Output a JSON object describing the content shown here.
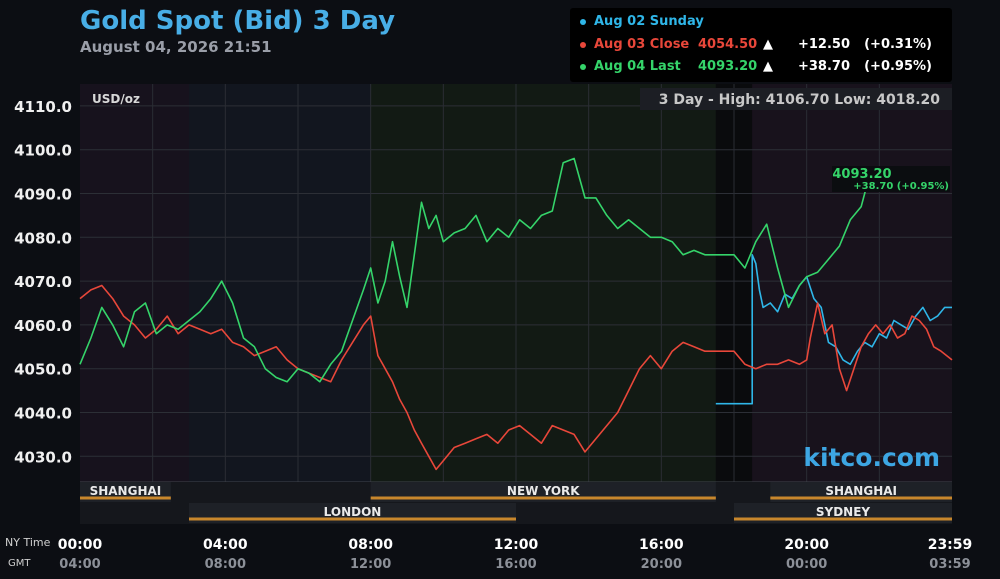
{
  "header": {
    "title": "Gold Spot (Bid) 3 Day",
    "subtitle": "August 04, 2026 21:51"
  },
  "legend": [
    {
      "label": "Aug 02 Sunday",
      "price": "",
      "arrow": "",
      "change": "",
      "pct": "",
      "color": "#2fb6e8"
    },
    {
      "label": "Aug 03 Close",
      "price": "4054.50",
      "arrow": "▲",
      "change": "+12.50",
      "pct": "(+0.31%)",
      "color": "#e8473a"
    },
    {
      "label": "Aug 04 Last",
      "price": "4093.20",
      "arrow": "▲",
      "change": "+38.70",
      "pct": "(+0.95%)",
      "color": "#35d46a"
    }
  ],
  "stats": {
    "text": "3 Day - High: 4106.70  Low: 4018.20"
  },
  "unit_label": "USD/oz",
  "watermark": "kitco.com",
  "last_label": {
    "price": "4093.20",
    "change": "+38.70 (+0.95%)"
  },
  "sessions": [
    {
      "name": "SHANGHAI",
      "start": 0,
      "end": 2.5,
      "row": 0
    },
    {
      "name": "NEW YORK",
      "start": 8,
      "end": 17.5,
      "row": 0
    },
    {
      "name": "SHANGHAI",
      "start": 19,
      "end": 24,
      "row": 0
    },
    {
      "name": "LONDON",
      "start": 3,
      "end": 12,
      "row": 1
    },
    {
      "name": "SYDNEY",
      "start": 18,
      "end": 24,
      "row": 1
    }
  ],
  "time_axis": {
    "ny_label": "NY Time",
    "gmt_label": "GMT",
    "ny_ticks": [
      "00:00",
      "04:00",
      "08:00",
      "12:00",
      "16:00",
      "20:00",
      "23:59"
    ],
    "gmt_ticks": [
      "04:00",
      "08:00",
      "12:00",
      "16:00",
      "20:00",
      "00:00",
      "03:59"
    ]
  },
  "chart_data": {
    "type": "line",
    "title": "Gold Spot (Bid) 3 Day",
    "ylabel": "USD/oz",
    "xlabel": "NY Time",
    "ylim": [
      4020,
      4115
    ],
    "xlim": [
      0,
      24
    ],
    "y_ticks": [
      "4110.0",
      "4100.0",
      "4090.0",
      "4080.0",
      "4070.0",
      "4060.0",
      "4050.0",
      "4040.0",
      "4030.0"
    ],
    "grid": true,
    "legend_position": "top-right",
    "series": [
      {
        "name": "Aug 02 Sunday",
        "color": "#2fb6e8",
        "x": [
          17.5,
          18.5,
          18.5,
          18.6,
          18.7,
          18.8,
          19.0,
          19.2,
          19.4,
          19.6,
          19.8,
          20.0,
          20.2,
          20.4,
          20.6,
          20.8,
          21.0,
          21.2,
          21.4,
          21.6,
          21.8,
          22.0,
          22.2,
          22.4,
          22.6,
          22.8,
          23.0,
          23.2,
          23.4,
          23.6,
          23.8,
          24.0
        ],
        "y": [
          4042,
          4042,
          4076,
          4074,
          4068,
          4064,
          4065,
          4063,
          4067,
          4066,
          4069,
          4071,
          4066,
          4064,
          4056,
          4055,
          4052,
          4051,
          4054,
          4056,
          4055,
          4058,
          4057,
          4061,
          4060,
          4059,
          4062,
          4064,
          4061,
          4062,
          4064,
          4064
        ]
      },
      {
        "name": "Aug 03 Close",
        "color": "#e8473a",
        "x": [
          0,
          0.3,
          0.6,
          0.9,
          1.2,
          1.5,
          1.8,
          2.1,
          2.4,
          2.7,
          3.0,
          3.3,
          3.6,
          3.9,
          4.2,
          4.5,
          4.8,
          5.1,
          5.4,
          5.7,
          6.0,
          6.3,
          6.6,
          6.9,
          7.2,
          7.5,
          7.8,
          8.0,
          8.2,
          8.4,
          8.6,
          8.8,
          9.0,
          9.2,
          9.4,
          9.6,
          9.8,
          10.0,
          10.3,
          10.6,
          10.9,
          11.2,
          11.5,
          11.8,
          12.1,
          12.4,
          12.7,
          13.0,
          13.3,
          13.6,
          13.9,
          14.2,
          14.5,
          14.8,
          15.1,
          15.4,
          15.7,
          16.0,
          16.3,
          16.6,
          16.9,
          17.2,
          17.5,
          18.0,
          18.3,
          18.6,
          18.9,
          19.2,
          19.5,
          19.8,
          20.0,
          20.1,
          20.3,
          20.5,
          20.7,
          20.9,
          21.1,
          21.3,
          21.5,
          21.7,
          21.9,
          22.1,
          22.3,
          22.5,
          22.7,
          22.9,
          23.1,
          23.3,
          23.5,
          23.7,
          24.0
        ],
        "y": [
          4066,
          4068,
          4069,
          4066,
          4062,
          4060,
          4057,
          4059,
          4062,
          4058,
          4060,
          4059,
          4058,
          4059,
          4056,
          4055,
          4053,
          4054,
          4055,
          4052,
          4050,
          4049,
          4048,
          4047,
          4052,
          4056,
          4060,
          4062,
          4053,
          4050,
          4047,
          4043,
          4040,
          4036,
          4033,
          4030,
          4027,
          4029,
          4032,
          4033,
          4034,
          4035,
          4033,
          4036,
          4037,
          4035,
          4033,
          4037,
          4036,
          4035,
          4031,
          4034,
          4037,
          4040,
          4045,
          4050,
          4053,
          4050,
          4054,
          4056,
          4055,
          4054,
          4054,
          4054,
          4051,
          4050,
          4051,
          4051,
          4052,
          4051,
          4052,
          4057,
          4065,
          4058,
          4060,
          4050,
          4045,
          4050,
          4055,
          4058,
          4060,
          4058,
          4060,
          4057,
          4058,
          4062,
          4061,
          4059,
          4055,
          4054,
          4052
        ]
      },
      {
        "name": "Aug 04 Last",
        "color": "#35d46a",
        "x": [
          0,
          0.3,
          0.6,
          0.9,
          1.2,
          1.5,
          1.8,
          2.1,
          2.4,
          2.7,
          3.0,
          3.3,
          3.6,
          3.9,
          4.2,
          4.5,
          4.8,
          5.1,
          5.4,
          5.7,
          6.0,
          6.3,
          6.6,
          6.9,
          7.2,
          7.5,
          7.8,
          8.0,
          8.2,
          8.4,
          8.6,
          8.8,
          9.0,
          9.2,
          9.4,
          9.6,
          9.8,
          10.0,
          10.3,
          10.6,
          10.9,
          11.2,
          11.5,
          11.8,
          12.1,
          12.4,
          12.7,
          13.0,
          13.3,
          13.6,
          13.9,
          14.2,
          14.5,
          14.8,
          15.1,
          15.4,
          15.7,
          16.0,
          16.3,
          16.6,
          16.9,
          17.2,
          17.5,
          18.0,
          18.3,
          18.6,
          18.9,
          19.2,
          19.5,
          19.8,
          20.0,
          20.3,
          20.6,
          20.9,
          21.2,
          21.5,
          21.7
        ],
        "y": [
          4051,
          4057,
          4064,
          4060,
          4055,
          4063,
          4065,
          4058,
          4060,
          4059,
          4061,
          4063,
          4066,
          4070,
          4065,
          4057,
          4055,
          4050,
          4048,
          4047,
          4050,
          4049,
          4047,
          4051,
          4054,
          4061,
          4068,
          4073,
          4065,
          4070,
          4079,
          4071,
          4064,
          4076,
          4088,
          4082,
          4085,
          4079,
          4081,
          4082,
          4085,
          4079,
          4082,
          4080,
          4084,
          4082,
          4085,
          4086,
          4097,
          4098,
          4089,
          4089,
          4085,
          4082,
          4084,
          4082,
          4080,
          4080,
          4079,
          4076,
          4077,
          4076,
          4076,
          4076,
          4073,
          4079,
          4083,
          4073,
          4064,
          4069,
          4071,
          4072,
          4075,
          4078,
          4084,
          4087,
          4093.2
        ]
      }
    ]
  }
}
